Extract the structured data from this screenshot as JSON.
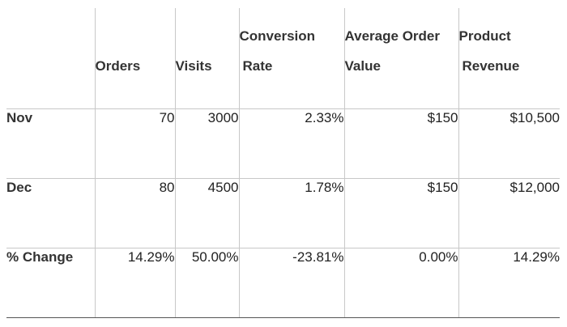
{
  "table": {
    "headers": [
      {
        "line1": "",
        "line2": ""
      },
      {
        "line1": "",
        "line2": "Orders"
      },
      {
        "line1": "",
        "line2": "Visits"
      },
      {
        "line1": "Conversion",
        "line2": "Rate"
      },
      {
        "line1": "Average Order",
        "line2": "Value"
      },
      {
        "line1": "Product",
        "line2": "Revenue"
      }
    ],
    "rows": [
      {
        "label": "Nov",
        "cells": [
          "70",
          "3000",
          "2.33%",
          "$150",
          "$10,500"
        ]
      },
      {
        "label": "Dec",
        "cells": [
          "80",
          "4500",
          "1.78%",
          "$150",
          "$12,000"
        ]
      },
      {
        "label": "% Change",
        "cells": [
          "14.29%",
          "50.00%",
          "-23.81%",
          "0.00%",
          "14.29%"
        ]
      }
    ]
  }
}
